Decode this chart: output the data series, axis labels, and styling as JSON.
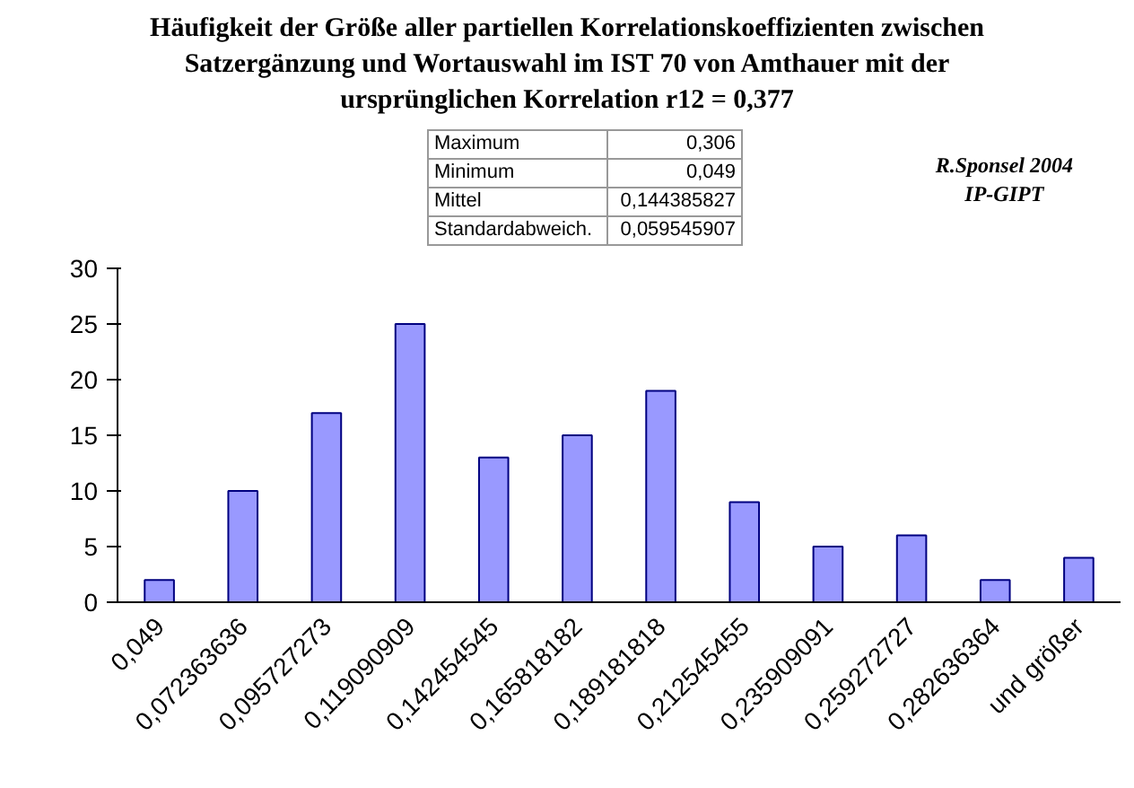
{
  "chart_data": {
    "type": "bar",
    "title": "Häufigkeit der Größe aller partiellen Korrelationskoeffizienten zwischen\nSatzergänzung und Wortauswahl im IST 70 von Amthauer  mit der\nursprünglichen Korrelation r12 = 0,377",
    "categories": [
      "0,049",
      "0,072363636",
      "0,095727273",
      "0,119090909",
      "0,142454545",
      "0,165818182",
      "0,189181818",
      "0,212545455",
      "0,235909091",
      "0,259272727",
      "0,282636364",
      "und größer"
    ],
    "values": [
      2,
      10,
      17,
      25,
      13,
      15,
      19,
      9,
      5,
      6,
      2,
      4
    ],
    "color": "#9999ff",
    "ylim": [
      0,
      30
    ],
    "yticks": [
      0,
      5,
      10,
      15,
      20,
      25,
      30
    ],
    "grid": false,
    "annotations": [
      "Maximum",
      "0,306",
      "Minimum",
      "0,049",
      "Mittel",
      "0,144385827",
      "Standardabweich.",
      "0,059545907",
      "R.Sponsel 2004",
      "IP-GIPT"
    ]
  }
}
